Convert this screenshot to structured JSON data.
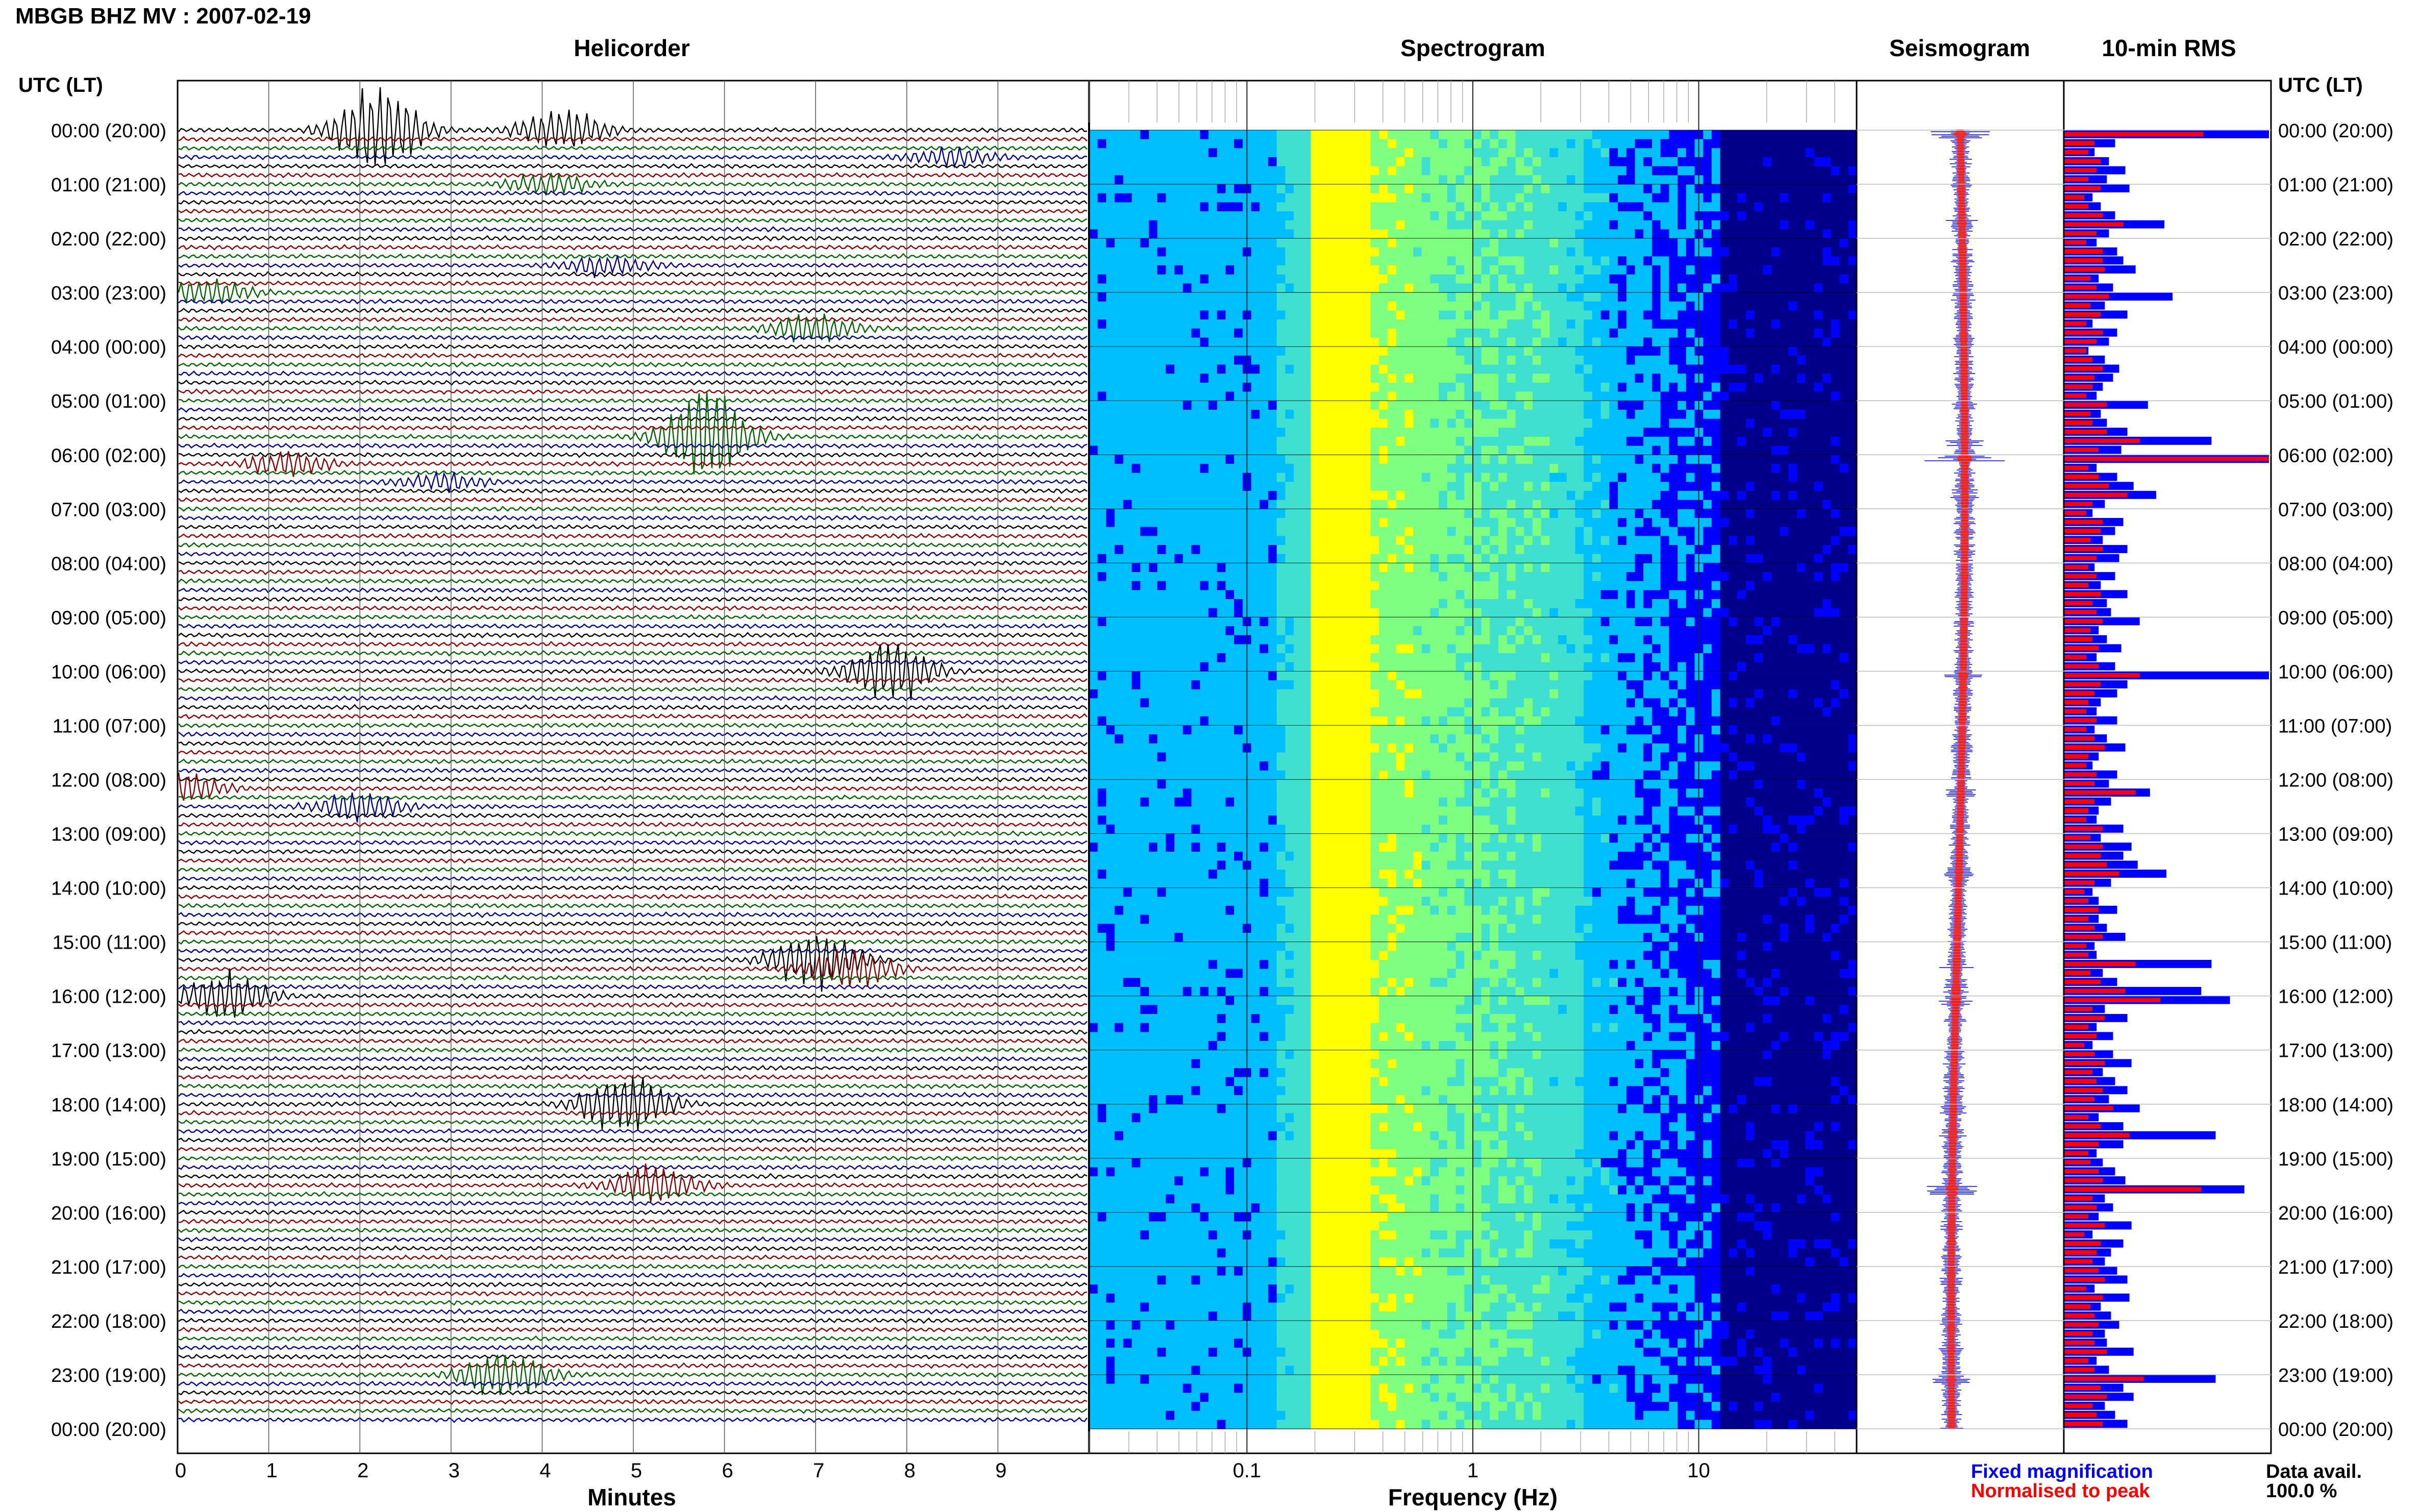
{
  "figure_title": "MBGB BHZ MV : 2007-02-19",
  "panel_titles": {
    "helicorder": "Helicorder",
    "spectrogram": "Spectrogram",
    "seismogram": "Seismogram",
    "rms": "10-min RMS"
  },
  "time_axis_label": "UTC (LT)",
  "time_ticks": [
    "00:00 (20:00)",
    "01:00 (21:00)",
    "02:00 (22:00)",
    "03:00 (23:00)",
    "04:00 (00:00)",
    "05:00 (01:00)",
    "06:00 (02:00)",
    "07:00 (03:00)",
    "08:00 (04:00)",
    "09:00 (05:00)",
    "10:00 (06:00)",
    "11:00 (07:00)",
    "12:00 (08:00)",
    "13:00 (09:00)",
    "14:00 (10:00)",
    "15:00 (11:00)",
    "16:00 (12:00)",
    "17:00 (13:00)",
    "18:00 (14:00)",
    "19:00 (15:00)",
    "20:00 (16:00)",
    "21:00 (17:00)",
    "22:00 (18:00)",
    "23:00 (19:00)",
    "00:00 (20:00)"
  ],
  "helicorder_xlabel": "Minutes",
  "helicorder_xticks": [
    "0",
    "1",
    "2",
    "3",
    "4",
    "5",
    "6",
    "7",
    "8",
    "9"
  ],
  "spectrogram_xlabel": "Frequency (Hz)",
  "spectrogram_xticks": [
    "0.1",
    "1",
    "10"
  ],
  "legend": {
    "fixed": "Fixed magnification",
    "normalised": "Normalised to peak",
    "fixed_color": "#0000ff",
    "normalised_color": "#ff0000"
  },
  "data_avail_label": "Data avail.",
  "data_avail_value": "100.0 %",
  "trace_colors": [
    "#000000",
    "#8b0000",
    "#006400",
    "#00008b"
  ],
  "chart_data": [
    {
      "type": "line",
      "panel": "helicorder",
      "xlabel": "Minutes",
      "xlim": [
        0,
        10
      ],
      "rows": 144,
      "row_minutes": 10,
      "events": [
        {
          "row": 0,
          "minute": 2.2,
          "amp": 1.8
        },
        {
          "row": 0,
          "minute": 4.2,
          "amp": 0.8
        },
        {
          "row": 3,
          "minute": 8.5,
          "amp": 0.35
        },
        {
          "row": 6,
          "minute": 4.1,
          "amp": 0.4
        },
        {
          "row": 15,
          "minute": 4.7,
          "amp": 0.4
        },
        {
          "row": 18,
          "minute": 0.3,
          "amp": 0.5
        },
        {
          "row": 22,
          "minute": 7.0,
          "amp": 0.6
        },
        {
          "row": 34,
          "minute": 5.8,
          "amp": 1.9
        },
        {
          "row": 37,
          "minute": 1.2,
          "amp": 0.45
        },
        {
          "row": 39,
          "minute": 2.9,
          "amp": 0.35
        },
        {
          "row": 60,
          "minute": 7.8,
          "amp": 1.3
        },
        {
          "row": 73,
          "minute": 0.0,
          "amp": 0.6
        },
        {
          "row": 75,
          "minute": 2.0,
          "amp": 0.6
        },
        {
          "row": 92,
          "minute": 7.0,
          "amp": 1.2
        },
        {
          "row": 93,
          "minute": 7.4,
          "amp": 0.8
        },
        {
          "row": 96,
          "minute": 0.5,
          "amp": 1.0
        },
        {
          "row": 108,
          "minute": 4.9,
          "amp": 1.3
        },
        {
          "row": 117,
          "minute": 5.2,
          "amp": 0.8
        },
        {
          "row": 138,
          "minute": 3.6,
          "amp": 1.0
        }
      ]
    },
    {
      "type": "heatmap",
      "panel": "spectrogram",
      "xlabel": "Frequency (Hz)",
      "xscale": "log",
      "xlim": [
        0.02,
        50
      ],
      "peak_band_hz": [
        0.2,
        0.3
      ],
      "colormap": [
        "#00008b",
        "#0000ff",
        "#00bfff",
        "#40e0d0",
        "#7fff7f",
        "#ffff00"
      ]
    },
    {
      "type": "line",
      "panel": "seismogram",
      "series": [
        {
          "name": "Fixed magnification",
          "color": "#0000ff"
        },
        {
          "name": "Normalised to peak",
          "color": "#ff0000"
        }
      ]
    },
    {
      "type": "bar",
      "panel": "rms",
      "orientation": "horizontal",
      "n": 144,
      "series": [
        {
          "name": "Fixed magnification",
          "color": "#0000ff",
          "values": [
            1.0,
            0.25,
            0.15,
            0.22,
            0.3,
            0.21,
            0.32,
            0.14,
            0.18,
            0.25,
            0.49,
            0.22,
            0.16,
            0.26,
            0.29,
            0.35,
            0.17,
            0.24,
            0.53,
            0.2,
            0.31,
            0.14,
            0.26,
            0.22,
            0.12,
            0.2,
            0.27,
            0.24,
            0.19,
            0.16,
            0.41,
            0.18,
            0.21,
            0.31,
            0.72,
            0.28,
            1.0,
            0.16,
            0.26,
            0.34,
            0.45,
            0.2,
            0.14,
            0.29,
            0.25,
            0.19,
            0.31,
            0.27,
            0.15,
            0.25,
            0.18,
            0.31,
            0.21,
            0.23,
            0.37,
            0.17,
            0.21,
            0.28,
            0.16,
            0.25,
            1.0,
            0.31,
            0.26,
            0.18,
            0.16,
            0.26,
            0.15,
            0.21,
            0.3,
            0.17,
            0.14,
            0.26,
            0.22,
            0.42,
            0.23,
            0.17,
            0.16,
            0.29,
            0.18,
            0.33,
            0.29,
            0.36,
            0.5,
            0.23,
            0.14,
            0.17,
            0.26,
            0.17,
            0.21,
            0.3,
            0.15,
            0.16,
            0.72,
            0.19,
            0.26,
            0.67,
            0.81,
            0.2,
            0.31,
            0.16,
            0.24,
            0.14,
            0.24,
            0.33,
            0.19,
            0.25,
            0.31,
            0.22,
            0.37,
            0.17,
            0.29,
            0.74,
            0.29,
            0.16,
            0.19,
            0.25,
            0.3,
            0.88,
            0.2,
            0.24,
            0.17,
            0.33,
            0.14,
            0.29,
            0.23,
            0.2,
            0.26,
            0.31,
            0.15,
            0.32,
            0.18,
            0.23,
            0.27,
            0.2,
            0.21,
            0.34,
            0.16,
            0.22,
            0.74,
            0.29,
            0.34,
            0.2,
            0.25,
            0.31
          ]
        },
        {
          "name": "Normalised to peak",
          "color": "#ff0000",
          "values": [
            0.68,
            0.15,
            0.12,
            0.18,
            0.16,
            0.12,
            0.18,
            0.1,
            0.12,
            0.19,
            0.29,
            0.16,
            0.11,
            0.19,
            0.19,
            0.2,
            0.13,
            0.16,
            0.22,
            0.13,
            0.18,
            0.11,
            0.19,
            0.16,
            0.11,
            0.14,
            0.19,
            0.15,
            0.14,
            0.11,
            0.21,
            0.13,
            0.14,
            0.21,
            0.37,
            0.17,
            1.0,
            0.12,
            0.17,
            0.22,
            0.31,
            0.14,
            0.11,
            0.19,
            0.18,
            0.13,
            0.19,
            0.16,
            0.12,
            0.16,
            0.12,
            0.18,
            0.14,
            0.16,
            0.19,
            0.13,
            0.14,
            0.17,
            0.11,
            0.17,
            0.37,
            0.18,
            0.15,
            0.12,
            0.11,
            0.16,
            0.11,
            0.15,
            0.2,
            0.12,
            0.11,
            0.16,
            0.15,
            0.35,
            0.15,
            0.12,
            0.11,
            0.19,
            0.13,
            0.19,
            0.18,
            0.21,
            0.27,
            0.15,
            0.1,
            0.12,
            0.17,
            0.12,
            0.15,
            0.19,
            0.11,
            0.12,
            0.35,
            0.13,
            0.18,
            0.3,
            0.47,
            0.14,
            0.2,
            0.12,
            0.16,
            0.1,
            0.15,
            0.2,
            0.14,
            0.16,
            0.19,
            0.15,
            0.24,
            0.12,
            0.18,
            0.32,
            0.17,
            0.12,
            0.13,
            0.17,
            0.19,
            0.67,
            0.14,
            0.16,
            0.12,
            0.2,
            0.1,
            0.18,
            0.16,
            0.14,
            0.17,
            0.2,
            0.11,
            0.19,
            0.13,
            0.15,
            0.17,
            0.14,
            0.15,
            0.21,
            0.12,
            0.15,
            0.39,
            0.18,
            0.21,
            0.14,
            0.16,
            0.19
          ]
        }
      ]
    }
  ]
}
